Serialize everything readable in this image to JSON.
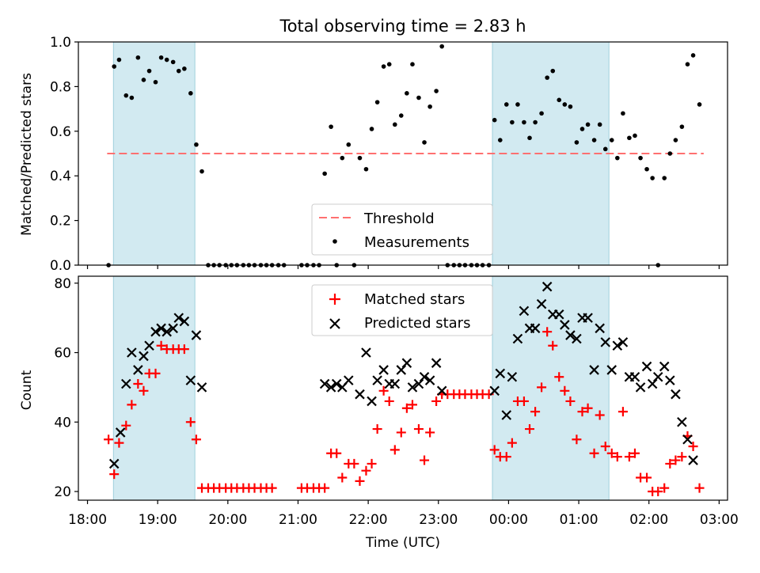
{
  "figure": {
    "title": "Total observing time = 2.83 h",
    "xlabel": "Time (UTC)",
    "x_ticks": [
      "18:00",
      "19:00",
      "20:00",
      "21:00",
      "22:00",
      "23:00",
      "00:00",
      "01:00",
      "02:00",
      "03:00"
    ]
  },
  "chart_data": [
    {
      "type": "scatter",
      "ylabel": "Matched/Predicted stars",
      "ylim": [
        0.0,
        1.0
      ],
      "y_ticks": [
        "0.0",
        "0.2",
        "0.4",
        "0.6",
        "0.8",
        "1.0"
      ],
      "x_unit": "hours since 18:00 UTC",
      "xlim": [
        -0.13,
        9.12
      ],
      "shaded_intervals": [
        [
          0.37,
          1.53
        ],
        [
          5.77,
          7.43
        ]
      ],
      "threshold": {
        "name": "Threshold",
        "value": 0.5,
        "x_range": [
          0.28,
          8.78
        ],
        "color": "#ff7070"
      },
      "legend_position": "lower center",
      "series": [
        {
          "name": "Measurements",
          "color": "#000000",
          "points": [
            [
              0.3,
              0.0
            ],
            [
              0.38,
              0.89
            ],
            [
              0.45,
              0.92
            ],
            [
              0.55,
              0.76
            ],
            [
              0.63,
              0.75
            ],
            [
              0.72,
              0.93
            ],
            [
              0.8,
              0.83
            ],
            [
              0.88,
              0.87
            ],
            [
              0.97,
              0.82
            ],
            [
              1.05,
              0.93
            ],
            [
              1.13,
              0.92
            ],
            [
              1.22,
              0.91
            ],
            [
              1.3,
              0.87
            ],
            [
              1.38,
              0.88
            ],
            [
              1.47,
              0.77
            ],
            [
              1.55,
              0.54
            ],
            [
              1.63,
              0.42
            ],
            [
              1.72,
              0.0
            ],
            [
              1.8,
              0.0
            ],
            [
              1.88,
              0.0
            ],
            [
              1.97,
              0.0
            ],
            [
              2.05,
              0.0
            ],
            [
              2.13,
              0.0
            ],
            [
              2.22,
              0.0
            ],
            [
              2.3,
              0.0
            ],
            [
              2.38,
              0.0
            ],
            [
              2.47,
              0.0
            ],
            [
              2.55,
              0.0
            ],
            [
              2.63,
              0.0
            ],
            [
              2.72,
              0.0
            ],
            [
              2.8,
              0.0
            ],
            [
              3.05,
              0.0
            ],
            [
              3.13,
              0.0
            ],
            [
              3.22,
              0.0
            ],
            [
              3.3,
              0.0
            ],
            [
              3.38,
              0.41
            ],
            [
              3.47,
              0.62
            ],
            [
              3.55,
              0.0
            ],
            [
              3.63,
              0.48
            ],
            [
              3.72,
              0.54
            ],
            [
              3.8,
              0.0
            ],
            [
              3.88,
              0.48
            ],
            [
              3.97,
              0.43
            ],
            [
              4.05,
              0.61
            ],
            [
              4.13,
              0.73
            ],
            [
              4.22,
              0.89
            ],
            [
              4.3,
              0.9
            ],
            [
              4.38,
              0.63
            ],
            [
              4.47,
              0.67
            ],
            [
              4.55,
              0.77
            ],
            [
              4.63,
              0.9
            ],
            [
              4.72,
              0.75
            ],
            [
              4.8,
              0.55
            ],
            [
              4.88,
              0.71
            ],
            [
              4.97,
              0.78
            ],
            [
              5.05,
              0.98
            ],
            [
              5.13,
              0.0
            ],
            [
              5.22,
              0.0
            ],
            [
              5.3,
              0.0
            ],
            [
              5.38,
              0.0
            ],
            [
              5.47,
              0.0
            ],
            [
              5.55,
              0.0
            ],
            [
              5.63,
              0.0
            ],
            [
              5.72,
              0.0
            ],
            [
              5.8,
              0.65
            ],
            [
              5.88,
              0.56
            ],
            [
              5.97,
              0.72
            ],
            [
              6.05,
              0.64
            ],
            [
              6.13,
              0.72
            ],
            [
              6.22,
              0.64
            ],
            [
              6.3,
              0.57
            ],
            [
              6.38,
              0.64
            ],
            [
              6.47,
              0.68
            ],
            [
              6.55,
              0.84
            ],
            [
              6.63,
              0.87
            ],
            [
              6.72,
              0.74
            ],
            [
              6.8,
              0.72
            ],
            [
              6.88,
              0.71
            ],
            [
              6.97,
              0.55
            ],
            [
              7.05,
              0.61
            ],
            [
              7.13,
              0.63
            ],
            [
              7.22,
              0.56
            ],
            [
              7.3,
              0.63
            ],
            [
              7.38,
              0.52
            ],
            [
              7.47,
              0.56
            ],
            [
              7.55,
              0.48
            ],
            [
              7.63,
              0.68
            ],
            [
              7.72,
              0.57
            ],
            [
              7.8,
              0.58
            ],
            [
              7.88,
              0.48
            ],
            [
              7.97,
              0.43
            ],
            [
              8.05,
              0.39
            ],
            [
              8.13,
              0.0
            ],
            [
              8.22,
              0.39
            ],
            [
              8.3,
              0.5
            ],
            [
              8.38,
              0.56
            ],
            [
              8.47,
              0.62
            ],
            [
              8.55,
              0.9
            ],
            [
              8.63,
              0.94
            ],
            [
              8.72,
              0.72
            ]
          ]
        }
      ]
    },
    {
      "type": "scatter",
      "ylabel": "Count",
      "ylim": [
        17.5,
        82
      ],
      "y_ticks": [
        "20",
        "40",
        "60",
        "80"
      ],
      "x_unit": "hours since 18:00 UTC",
      "xlim": [
        -0.13,
        9.12
      ],
      "shaded_intervals": [
        [
          0.37,
          1.53
        ],
        [
          5.77,
          7.43
        ]
      ],
      "legend_position": "upper center",
      "series": [
        {
          "name": "Matched stars",
          "marker": "plus",
          "color": "#ff0000",
          "points": [
            [
              0.3,
              35
            ],
            [
              0.38,
              25
            ],
            [
              0.45,
              34
            ],
            [
              0.55,
              39
            ],
            [
              0.63,
              45
            ],
            [
              0.72,
              51
            ],
            [
              0.8,
              49
            ],
            [
              0.88,
              54
            ],
            [
              0.97,
              54
            ],
            [
              1.05,
              62
            ],
            [
              1.13,
              61
            ],
            [
              1.22,
              61
            ],
            [
              1.3,
              61
            ],
            [
              1.38,
              61
            ],
            [
              1.47,
              40
            ],
            [
              1.55,
              35
            ],
            [
              1.63,
              21
            ],
            [
              1.72,
              21
            ],
            [
              1.8,
              21
            ],
            [
              1.88,
              21
            ],
            [
              1.97,
              21
            ],
            [
              2.05,
              21
            ],
            [
              2.13,
              21
            ],
            [
              2.22,
              21
            ],
            [
              2.3,
              21
            ],
            [
              2.38,
              21
            ],
            [
              2.47,
              21
            ],
            [
              2.55,
              21
            ],
            [
              2.63,
              21
            ],
            [
              3.05,
              21
            ],
            [
              3.13,
              21
            ],
            [
              3.22,
              21
            ],
            [
              3.3,
              21
            ],
            [
              3.38,
              21
            ],
            [
              3.47,
              31
            ],
            [
              3.55,
              31
            ],
            [
              3.63,
              24
            ],
            [
              3.72,
              28
            ],
            [
              3.8,
              28
            ],
            [
              3.88,
              23
            ],
            [
              3.97,
              26
            ],
            [
              4.05,
              28
            ],
            [
              4.13,
              38
            ],
            [
              4.22,
              49
            ],
            [
              4.3,
              46
            ],
            [
              4.38,
              32
            ],
            [
              4.47,
              37
            ],
            [
              4.55,
              44
            ],
            [
              4.63,
              45
            ],
            [
              4.72,
              38
            ],
            [
              4.8,
              29
            ],
            [
              4.88,
              37
            ],
            [
              4.97,
              46
            ],
            [
              5.05,
              48
            ],
            [
              5.13,
              48
            ],
            [
              5.22,
              48
            ],
            [
              5.3,
              48
            ],
            [
              5.38,
              48
            ],
            [
              5.47,
              48
            ],
            [
              5.55,
              48
            ],
            [
              5.63,
              48
            ],
            [
              5.72,
              48
            ],
            [
              5.8,
              32
            ],
            [
              5.88,
              30
            ],
            [
              5.97,
              30
            ],
            [
              6.05,
              34
            ],
            [
              6.13,
              46
            ],
            [
              6.22,
              46
            ],
            [
              6.3,
              38
            ],
            [
              6.38,
              43
            ],
            [
              6.47,
              50
            ],
            [
              6.55,
              66
            ],
            [
              6.63,
              62
            ],
            [
              6.72,
              53
            ],
            [
              6.8,
              49
            ],
            [
              6.88,
              46
            ],
            [
              6.97,
              35
            ],
            [
              7.05,
              43
            ],
            [
              7.13,
              44
            ],
            [
              7.22,
              31
            ],
            [
              7.3,
              42
            ],
            [
              7.38,
              33
            ],
            [
              7.47,
              31
            ],
            [
              7.55,
              30
            ],
            [
              7.63,
              43
            ],
            [
              7.72,
              30
            ],
            [
              7.8,
              31
            ],
            [
              7.88,
              24
            ],
            [
              7.97,
              24
            ],
            [
              8.05,
              20
            ],
            [
              8.13,
              20
            ],
            [
              8.22,
              21
            ],
            [
              8.3,
              28
            ],
            [
              8.38,
              29
            ],
            [
              8.47,
              30
            ],
            [
              8.55,
              36
            ],
            [
              8.63,
              33
            ],
            [
              8.72,
              21
            ]
          ]
        },
        {
          "name": "Predicted stars",
          "marker": "x",
          "color": "#000000",
          "points": [
            [
              0.38,
              28
            ],
            [
              0.47,
              37
            ],
            [
              0.55,
              51
            ],
            [
              0.63,
              60
            ],
            [
              0.72,
              55
            ],
            [
              0.8,
              59
            ],
            [
              0.88,
              62
            ],
            [
              0.97,
              66
            ],
            [
              1.05,
              67
            ],
            [
              1.13,
              66
            ],
            [
              1.22,
              67
            ],
            [
              1.3,
              70
            ],
            [
              1.38,
              69
            ],
            [
              1.47,
              52
            ],
            [
              1.55,
              65
            ],
            [
              1.63,
              50
            ],
            [
              3.38,
              51
            ],
            [
              3.47,
              50
            ],
            [
              3.55,
              51
            ],
            [
              3.63,
              50
            ],
            [
              3.72,
              52
            ],
            [
              3.88,
              48
            ],
            [
              3.97,
              60
            ],
            [
              4.05,
              46
            ],
            [
              4.13,
              52
            ],
            [
              4.22,
              55
            ],
            [
              4.3,
              51
            ],
            [
              4.38,
              51
            ],
            [
              4.47,
              55
            ],
            [
              4.55,
              57
            ],
            [
              4.63,
              50
            ],
            [
              4.72,
              51
            ],
            [
              4.8,
              53
            ],
            [
              4.88,
              52
            ],
            [
              4.97,
              57
            ],
            [
              5.05,
              49
            ],
            [
              5.8,
              49
            ],
            [
              5.88,
              54
            ],
            [
              5.97,
              42
            ],
            [
              6.05,
              53
            ],
            [
              6.13,
              64
            ],
            [
              6.22,
              72
            ],
            [
              6.3,
              67
            ],
            [
              6.38,
              67
            ],
            [
              6.47,
              74
            ],
            [
              6.55,
              79
            ],
            [
              6.63,
              71
            ],
            [
              6.72,
              71
            ],
            [
              6.8,
              68
            ],
            [
              6.88,
              65
            ],
            [
              6.97,
              64
            ],
            [
              7.05,
              70
            ],
            [
              7.13,
              70
            ],
            [
              7.22,
              55
            ],
            [
              7.3,
              67
            ],
            [
              7.38,
              63
            ],
            [
              7.47,
              55
            ],
            [
              7.55,
              62
            ],
            [
              7.63,
              63
            ],
            [
              7.72,
              53
            ],
            [
              7.8,
              53
            ],
            [
              7.88,
              50
            ],
            [
              7.97,
              56
            ],
            [
              8.05,
              51
            ],
            [
              8.13,
              53
            ],
            [
              8.22,
              56
            ],
            [
              8.3,
              52
            ],
            [
              8.38,
              48
            ],
            [
              8.47,
              40
            ],
            [
              8.55,
              35
            ],
            [
              8.63,
              29
            ]
          ]
        }
      ]
    }
  ]
}
